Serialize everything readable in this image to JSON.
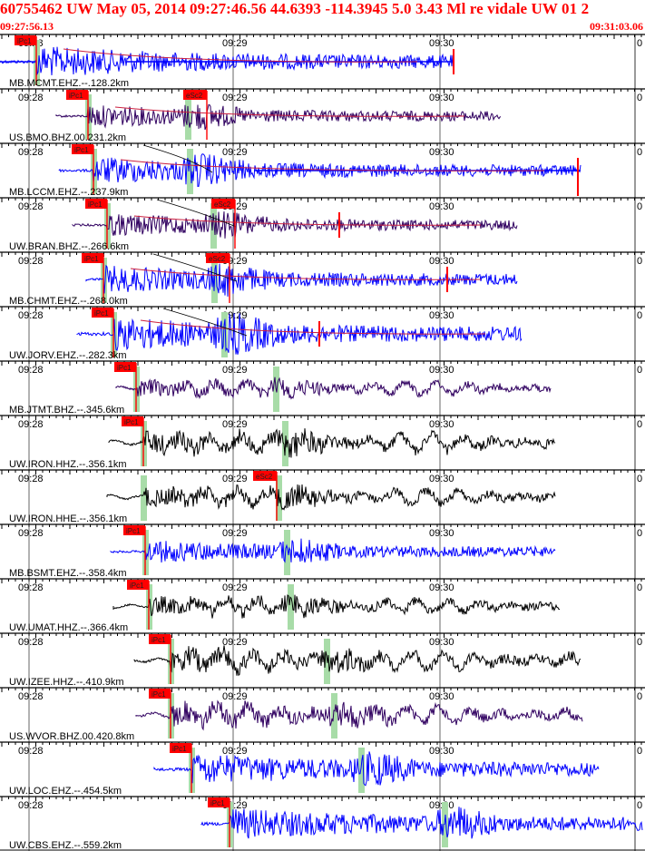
{
  "header": {
    "title": "60755462 UW May 05, 2014 09:27:46.56   44.6393 -114.3945  5.0 3.43 Ml re vidale UW 01   2",
    "start_time": "09:27:56.13",
    "end_time": "09:31:03.06"
  },
  "time_marks": [
    "09:28",
    "09:29",
    "09:30"
  ],
  "gain_label": "0",
  "colors": {
    "blue": "#0000ff",
    "purple": "#300060",
    "black": "#000000",
    "pick": "#ff0000",
    "window": "#a8dca8",
    "curve": "#000000"
  },
  "traces": [
    {
      "station_label": "MB.MCMT.EHZ.--.128.2km",
      "color": "blue",
      "pick_p": "iPc1",
      "pick_s": "",
      "amp": 14,
      "style": "hf"
    },
    {
      "station_label": "US.BMO.BHZ.00.231.2km",
      "color": "purple",
      "pick_p": "iPc1",
      "pick_s": "eSc2",
      "amp": 10,
      "style": "hf"
    },
    {
      "station_label": "MB.LCCM.EHZ.--.237.9km",
      "color": "blue",
      "pick_p": "iPc1",
      "pick_s": "",
      "amp": 12,
      "style": "hf"
    },
    {
      "station_label": "UW.BRAN.BHZ.--.266.6km",
      "color": "purple",
      "pick_p": "iPc1",
      "pick_s": "eSc2",
      "amp": 10,
      "style": "hf"
    },
    {
      "station_label": "MB.CHMT.EHZ.--.268.0km",
      "color": "blue",
      "pick_p": "iPc1",
      "pick_s": "eSc2",
      "amp": 12,
      "style": "hf"
    },
    {
      "station_label": "UW.JORV.EHZ.--.282.3km",
      "color": "blue",
      "pick_p": "iPc1",
      "pick_s": "",
      "amp": 15,
      "style": "hf"
    },
    {
      "station_label": "MB.JTMT.BHZ.--.345.6km",
      "color": "purple",
      "pick_p": "iPc1",
      "pick_s": "",
      "amp": 12,
      "style": "lf"
    },
    {
      "station_label": "UW.IRON.HHZ.--.356.1km",
      "color": "black",
      "pick_p": "iPc1",
      "pick_s": "",
      "amp": 16,
      "style": "lf"
    },
    {
      "station_label": "UW.IRON.HHE.--.356.1km",
      "color": "black",
      "pick_p": "",
      "pick_s": "eSc2",
      "amp": 14,
      "style": "lf"
    },
    {
      "station_label": "MB.BSMT.EHZ.--.358.4km",
      "color": "blue",
      "pick_p": "iPc1",
      "pick_s": "",
      "amp": 10,
      "style": "hf"
    },
    {
      "station_label": "UW.UMAT.HHZ.--.366.4km",
      "color": "black",
      "pick_p": "iPc1",
      "pick_s": "",
      "amp": 13,
      "style": "lf"
    },
    {
      "station_label": "UW.IZEE.HHZ.--.410.9km",
      "color": "black",
      "pick_p": "iPc1",
      "pick_s": "",
      "amp": 16,
      "style": "lf"
    },
    {
      "station_label": "US.WVOR.BHZ.00.420.8km",
      "color": "purple",
      "pick_p": "iPc1",
      "pick_s": "",
      "amp": 16,
      "style": "lf"
    },
    {
      "station_label": "UW.LOC.EHZ.--.454.5km",
      "color": "blue",
      "pick_p": "iPc1",
      "pick_s": "",
      "amp": 14,
      "style": "hf"
    },
    {
      "station_label": "UW.CBS.EHZ.--.559.2km",
      "color": "blue",
      "pick_p": "iPc1",
      "pick_s": "",
      "amp": 14,
      "style": "hf"
    }
  ]
}
